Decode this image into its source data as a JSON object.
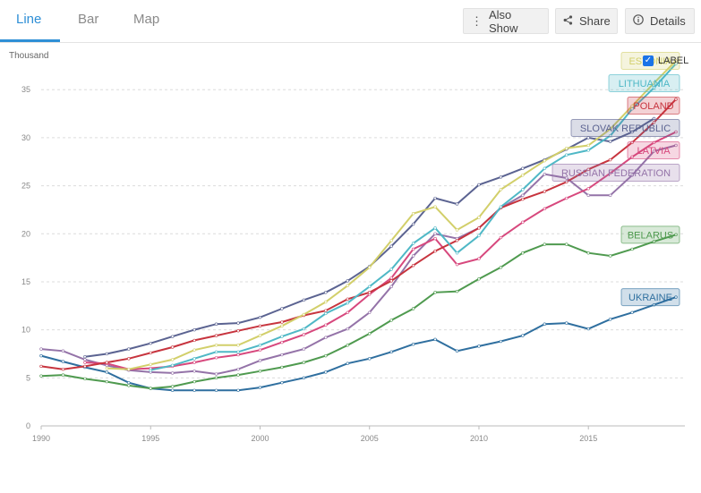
{
  "tabs": [
    {
      "label": "Line",
      "active": true
    },
    {
      "label": "Bar",
      "active": false
    },
    {
      "label": "Map",
      "active": false
    }
  ],
  "buttons": {
    "also_show": "Also Show",
    "share": "Share",
    "details": "Details"
  },
  "label_toggle": {
    "text": "LABEL",
    "checked": true
  },
  "chart_data": {
    "type": "line",
    "ylabel": "Thousand",
    "xlabel": "",
    "xlim": [
      1990,
      2019
    ],
    "ylim": [
      0,
      38
    ],
    "x_ticks": [
      1990,
      1995,
      2000,
      2005,
      2010,
      2015
    ],
    "y_ticks": [
      0,
      5,
      10,
      15,
      20,
      25,
      30,
      35
    ],
    "grid": true,
    "legend": "inline labels at right end of lines",
    "series": [
      {
        "name": "ESTONIA",
        "color": "#d2cf6a",
        "x": [
          1993,
          1994,
          1995,
          1996,
          1997,
          1998,
          1999,
          2000,
          2001,
          2002,
          2003,
          2004,
          2005,
          2006,
          2007,
          2008,
          2009,
          2010,
          2011,
          2012,
          2013,
          2014,
          2015,
          2016,
          2017,
          2018,
          2019
        ],
        "values": [
          6.0,
          5.9,
          6.4,
          6.9,
          7.9,
          8.4,
          8.4,
          9.4,
          10.4,
          11.6,
          12.9,
          14.6,
          16.5,
          19.3,
          22.1,
          22.8,
          20.4,
          21.7,
          24.6,
          26.1,
          27.6,
          28.9,
          29.2,
          30.9,
          33.3,
          35.7,
          38.0
        ]
      },
      {
        "name": "LITHUANIA",
        "color": "#4fb8c6",
        "x": [
          1995,
          1996,
          1997,
          1998,
          1999,
          2000,
          2001,
          2002,
          2003,
          2004,
          2005,
          2006,
          2007,
          2008,
          2009,
          2010,
          2011,
          2012,
          2013,
          2014,
          2015,
          2016,
          2017,
          2018,
          2019
        ],
        "values": [
          5.8,
          6.3,
          7.0,
          7.7,
          7.7,
          8.4,
          9.3,
          10.1,
          11.7,
          12.8,
          14.5,
          16.3,
          19.0,
          20.6,
          18.0,
          19.8,
          22.8,
          24.6,
          26.8,
          28.2,
          28.7,
          30.2,
          33.0,
          35.2,
          37.7
        ]
      },
      {
        "name": "POLAND",
        "color": "#c7343e",
        "x": [
          1990,
          1991,
          1992,
          1993,
          1994,
          1995,
          1996,
          1997,
          1998,
          1999,
          2000,
          2001,
          2002,
          2003,
          2004,
          2005,
          2006,
          2007,
          2008,
          2009,
          2010,
          2011,
          2012,
          2013,
          2014,
          2015,
          2016,
          2017,
          2018,
          2019
        ],
        "values": [
          6.2,
          5.9,
          6.2,
          6.6,
          7.0,
          7.6,
          8.2,
          8.9,
          9.4,
          9.9,
          10.4,
          10.8,
          11.5,
          12.0,
          13.2,
          13.9,
          15.1,
          16.7,
          18.2,
          19.3,
          20.6,
          22.7,
          23.6,
          24.4,
          25.4,
          26.7,
          27.7,
          29.5,
          31.6,
          34.0
        ]
      },
      {
        "name": "SLOVAK REPUBLIC",
        "color": "#5b6391",
        "x": [
          1992,
          1993,
          1994,
          1995,
          1996,
          1997,
          1998,
          1999,
          2000,
          2001,
          2002,
          2003,
          2004,
          2005,
          2006,
          2007,
          2008,
          2009,
          2010,
          2011,
          2012,
          2013,
          2014,
          2015,
          2016,
          2017,
          2018
        ],
        "values": [
          7.2,
          7.5,
          8.0,
          8.6,
          9.3,
          10.0,
          10.6,
          10.7,
          11.3,
          12.2,
          13.1,
          13.9,
          15.1,
          16.6,
          18.7,
          21.0,
          23.7,
          23.1,
          25.1,
          25.9,
          26.8,
          27.7,
          28.8,
          30.0,
          29.6,
          30.6,
          32.0
        ]
      },
      {
        "name": "LATVIA",
        "color": "#d7487d",
        "x": [
          1992,
          1993,
          1994,
          1995,
          1996,
          1997,
          1998,
          1999,
          2000,
          2001,
          2002,
          2003,
          2004,
          2005,
          2006,
          2007,
          2008,
          2009,
          2010,
          2011,
          2012,
          2013,
          2014,
          2015,
          2016,
          2017,
          2018,
          2019
        ],
        "values": [
          6.6,
          6.5,
          5.9,
          6.0,
          6.2,
          6.6,
          7.1,
          7.4,
          7.9,
          8.7,
          9.5,
          10.5,
          11.8,
          13.7,
          15.4,
          18.4,
          19.5,
          16.8,
          17.4,
          19.6,
          21.2,
          22.6,
          23.7,
          24.7,
          26.3,
          28.0,
          29.5,
          30.6
        ]
      },
      {
        "name": "RUSSIAN FEDERATION",
        "color": "#9473a8",
        "x": [
          1990,
          1991,
          1992,
          1993,
          1994,
          1995,
          1996,
          1997,
          1998,
          1999,
          2000,
          2001,
          2002,
          2003,
          2004,
          2005,
          2006,
          2007,
          2008,
          2009,
          2010,
          2011,
          2012,
          2013,
          2014,
          2015,
          2016,
          2017,
          2018,
          2019
        ],
        "values": [
          8.0,
          7.8,
          6.9,
          6.3,
          5.8,
          5.6,
          5.5,
          5.7,
          5.4,
          5.9,
          6.8,
          7.4,
          8.0,
          9.2,
          10.1,
          11.8,
          14.5,
          17.7,
          20.0,
          19.5,
          20.6,
          22.7,
          24.0,
          26.2,
          25.8,
          24.0,
          24.0,
          26.1,
          28.6,
          29.2
        ]
      },
      {
        "name": "BELARUS",
        "color": "#4f9a4f",
        "x": [
          1990,
          1991,
          1992,
          1993,
          1994,
          1995,
          1996,
          1997,
          1998,
          1999,
          2000,
          2001,
          2002,
          2003,
          2004,
          2005,
          2006,
          2007,
          2008,
          2009,
          2010,
          2011,
          2012,
          2013,
          2014,
          2015,
          2016,
          2017,
          2018,
          2019
        ],
        "values": [
          5.2,
          5.3,
          4.9,
          4.6,
          4.2,
          3.9,
          4.1,
          4.6,
          5.0,
          5.3,
          5.7,
          6.1,
          6.6,
          7.3,
          8.4,
          9.6,
          11.0,
          12.2,
          13.9,
          14.0,
          15.3,
          16.5,
          18.0,
          18.9,
          18.9,
          18.0,
          17.7,
          18.4,
          19.2,
          19.9
        ]
      },
      {
        "name": "UKRAINE",
        "color": "#2f6f9f",
        "x": [
          1990,
          1991,
          1992,
          1993,
          1994,
          1995,
          1996,
          1997,
          1998,
          1999,
          2000,
          2001,
          2002,
          2003,
          2004,
          2005,
          2006,
          2007,
          2008,
          2009,
          2010,
          2011,
          2012,
          2013,
          2014,
          2015,
          2016,
          2017,
          2018,
          2019
        ],
        "values": [
          7.3,
          6.7,
          6.1,
          5.6,
          4.5,
          3.9,
          3.7,
          3.7,
          3.7,
          3.7,
          4.0,
          4.5,
          5.0,
          5.6,
          6.5,
          7.0,
          7.7,
          8.5,
          9.0,
          7.8,
          8.3,
          8.8,
          9.4,
          10.6,
          10.7,
          10.1,
          11.1,
          11.8,
          12.6,
          13.4
        ]
      }
    ]
  }
}
